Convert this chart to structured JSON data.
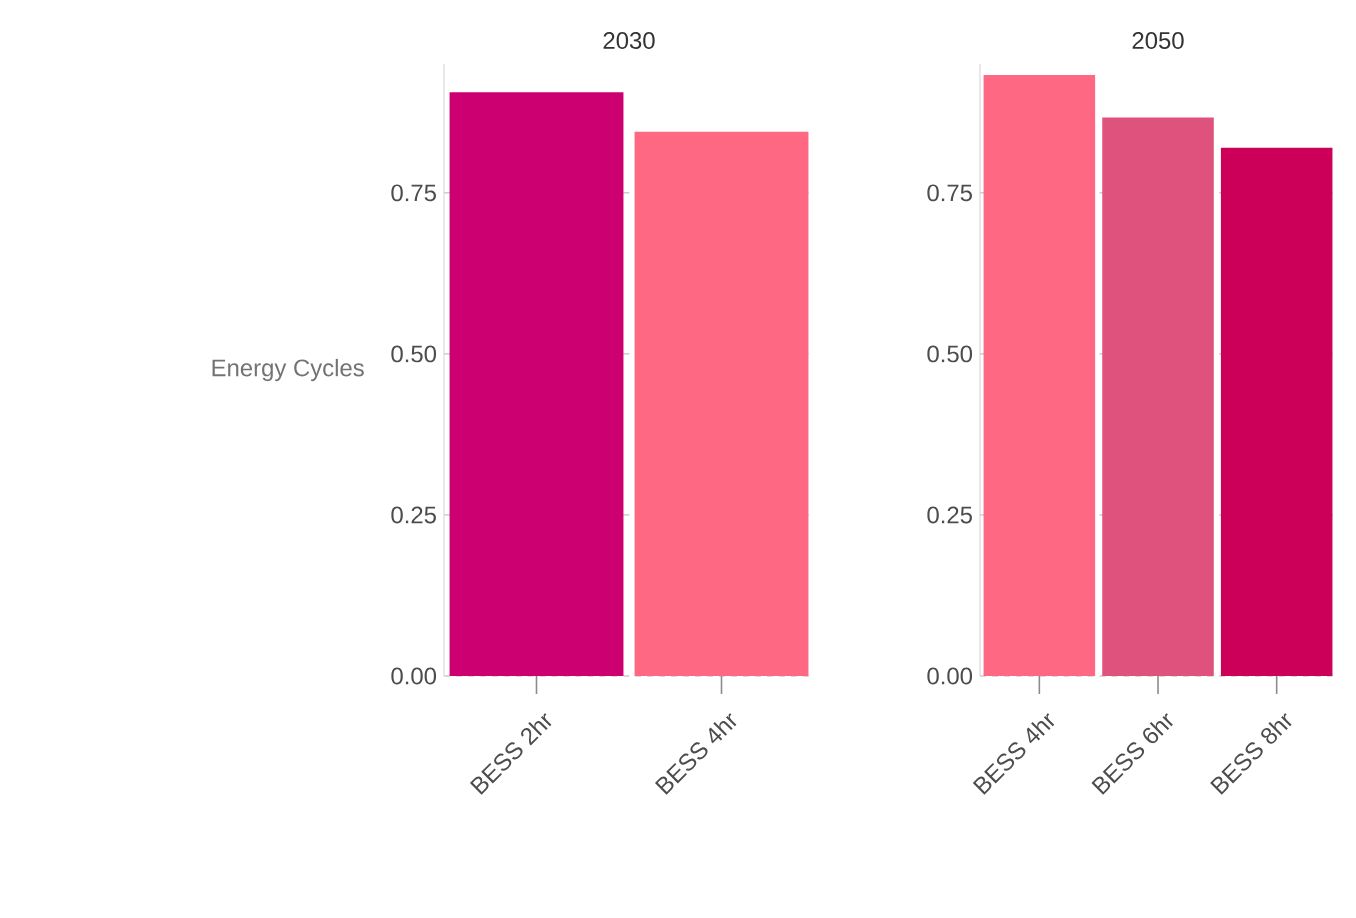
{
  "chart_data": [
    {
      "type": "bar",
      "title": "2030",
      "ylabel": "Energy Cycles",
      "categories": [
        "BESS 2hr",
        "BESS 4hr"
      ],
      "values": [
        0.906,
        0.845
      ],
      "colors": [
        "#cc0070",
        "#ff6882"
      ],
      "ylim": [
        0,
        0.95
      ],
      "yticks": [
        {
          "value": 0,
          "label": "0.00"
        },
        {
          "value": 0.25,
          "label": "0.25"
        },
        {
          "value": 0.5,
          "label": "0.50"
        },
        {
          "value": 0.75,
          "label": "0.75"
        }
      ],
      "grid": "y"
    },
    {
      "type": "bar",
      "title": "2050",
      "categories": [
        "BESS 4hr",
        "BESS 6hr",
        "BESS 8hr"
      ],
      "values": [
        0.933,
        0.867,
        0.82
      ],
      "colors": [
        "#ff6882",
        "#e0527e",
        "#cc0058"
      ],
      "ylim": [
        0,
        0.95
      ],
      "yticks": [
        {
          "value": 0,
          "label": "0.00"
        },
        {
          "value": 0.25,
          "label": "0.25"
        },
        {
          "value": 0.5,
          "label": "0.50"
        },
        {
          "value": 0.75,
          "label": "0.75"
        }
      ],
      "grid": "y"
    }
  ]
}
